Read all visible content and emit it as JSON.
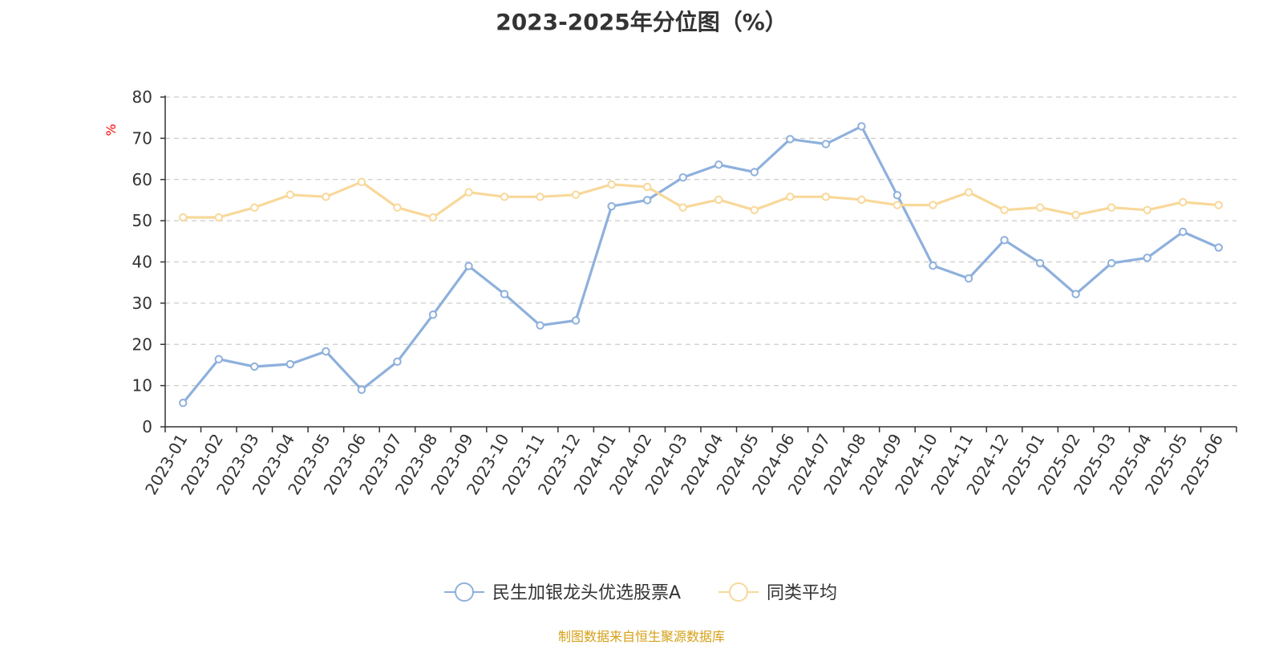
{
  "chart_data": {
    "type": "line",
    "title": "2023-2025年分位图（%）",
    "ylabel": "%",
    "xlabel": "",
    "ylim": [
      0,
      80
    ],
    "yticks": [
      0,
      10,
      20,
      30,
      40,
      50,
      60,
      70,
      80
    ],
    "grid": true,
    "legend_position": "bottom-center",
    "categories": [
      "2023-01",
      "2023-02",
      "2023-03",
      "2023-04",
      "2023-05",
      "2023-06",
      "2023-07",
      "2023-08",
      "2023-09",
      "2023-10",
      "2023-11",
      "2023-12",
      "2024-01",
      "2024-02",
      "2024-03",
      "2024-04",
      "2024-05",
      "2024-06",
      "2024-07",
      "2024-08",
      "2024-09",
      "2024-10",
      "2024-11",
      "2024-12",
      "2025-01",
      "2025-02",
      "2025-03",
      "2025-04",
      "2025-05",
      "2025-06"
    ],
    "series": [
      {
        "name": "民生加银龙头优选股票A",
        "color": "#8eb0dc",
        "values": [
          5.8,
          16.4,
          14.6,
          15.2,
          18.3,
          9.0,
          15.8,
          27.2,
          39.0,
          32.2,
          24.6,
          25.8,
          53.5,
          55.0,
          60.5,
          63.6,
          61.8,
          69.8,
          68.6,
          72.9,
          56.2,
          39.1,
          36.0,
          45.3,
          39.7,
          32.2,
          39.7,
          41.0,
          47.3,
          43.5
        ]
      },
      {
        "name": "同类平均",
        "color": "#f8d89a",
        "values": [
          50.8,
          50.8,
          53.2,
          56.3,
          55.8,
          59.4,
          53.2,
          50.8,
          56.9,
          55.8,
          55.8,
          56.3,
          58.8,
          58.2,
          53.2,
          55.1,
          52.6,
          55.8,
          55.8,
          55.1,
          53.8,
          53.8,
          56.9,
          52.6,
          53.2,
          51.4,
          53.2,
          52.6,
          54.5,
          53.8
        ]
      }
    ]
  },
  "footer": {
    "source": "制图数据来自恒生聚源数据库"
  }
}
